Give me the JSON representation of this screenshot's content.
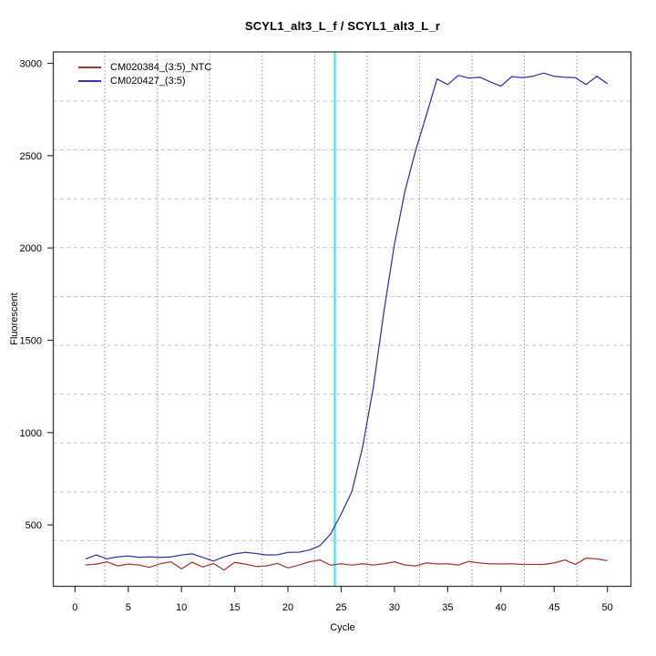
{
  "chart_data": {
    "type": "line",
    "title": "SCYL1_alt3_L_f / SCYL1_alt3_L_r",
    "xlabel": "Cycle",
    "ylabel": "Fluorescent",
    "x_ticks": [
      0,
      5,
      10,
      15,
      20,
      25,
      30,
      35,
      40,
      45,
      50
    ],
    "y_ticks": [
      500,
      1000,
      1500,
      2000,
      2500,
      3000
    ],
    "xlim": [
      0,
      50
    ],
    "ylim": [
      180,
      3060
    ],
    "grid": {
      "h_line_values": [
        2795,
        2531,
        2266,
        2002,
        1737,
        1473,
        1208,
        944,
        679,
        415
      ],
      "v_line_cycles": [
        2.8,
        7.73,
        12.65,
        17.58,
        22.5,
        27.43,
        32.35,
        37.28,
        42.2,
        47.13
      ],
      "h_color": "#c6c6c6",
      "v_color": "#8a8a8a"
    },
    "threshold_line": {
      "cycle": 24.4,
      "color": "#3fe6ef"
    },
    "x": [
      1,
      2,
      3,
      4,
      5,
      6,
      7,
      8,
      9,
      10,
      11,
      12,
      13,
      14,
      15,
      16,
      17,
      18,
      19,
      20,
      21,
      22,
      23,
      24,
      25,
      26,
      27,
      28,
      29,
      30,
      31,
      32,
      33,
      34,
      35,
      36,
      37,
      38,
      39,
      40,
      41,
      42,
      43,
      44,
      45,
      46,
      47,
      48,
      49,
      50
    ],
    "series": [
      {
        "name": "CM020384_(3:5)_NTC",
        "color": "#a13832",
        "values": [
          283,
          288,
          300,
          278,
          288,
          283,
          270,
          290,
          300,
          262,
          298,
          272,
          291,
          256,
          297,
          288,
          275,
          278,
          292,
          267,
          282,
          300,
          310,
          282,
          290,
          282,
          290,
          283,
          290,
          300,
          283,
          278,
          294,
          289,
          289,
          283,
          302,
          294,
          289,
          289,
          289,
          286,
          286,
          286,
          294,
          310,
          286,
          320,
          316,
          306
        ]
      },
      {
        "name": "CM020427_(3:5)",
        "color": "#3434a4",
        "values": [
          316,
          337,
          316,
          327,
          332,
          324,
          327,
          324,
          327,
          337,
          343,
          324,
          304,
          327,
          343,
          351,
          345,
          337,
          338,
          351,
          352,
          364,
          387,
          450,
          560,
          680,
          920,
          1240,
          1650,
          2020,
          2310,
          2530,
          2720,
          2915,
          2885,
          2935,
          2920,
          2925,
          2900,
          2876,
          2928,
          2922,
          2930,
          2947,
          2930,
          2925,
          2922,
          2885,
          2930,
          2890
        ]
      }
    ],
    "legend_position": "top-left",
    "axis_color": "#3a3a3a"
  }
}
